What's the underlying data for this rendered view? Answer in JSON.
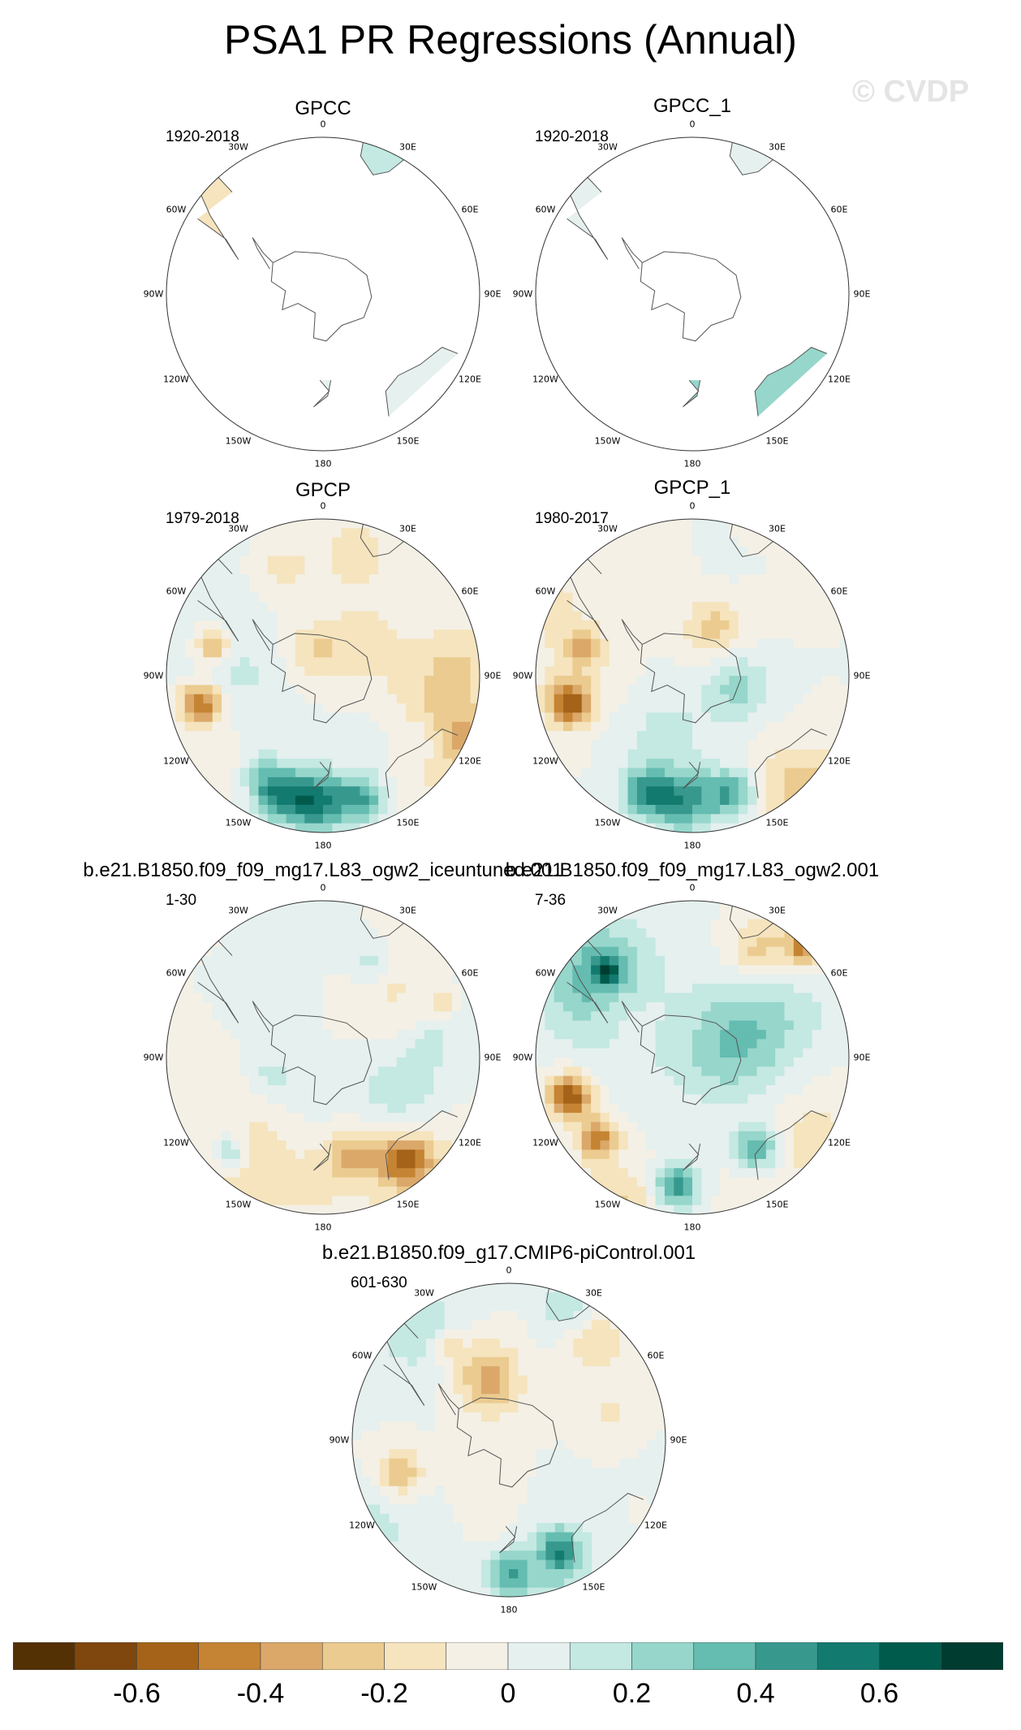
{
  "title": "PSA1 PR Regressions (Annual)",
  "watermark": "© CVDP",
  "lon_labels": [
    "0",
    "30E",
    "60E",
    "90E",
    "120E",
    "150E",
    "180",
    "150W",
    "120W",
    "90W",
    "60W",
    "30W"
  ],
  "panels": [
    {
      "title": "GPCC",
      "range": "1920-2018",
      "field": "land-only"
    },
    {
      "title": "GPCC_1",
      "range": "1920-2018",
      "field": "land-only"
    },
    {
      "title": "GPCP",
      "range": "1979-2018",
      "field": "full"
    },
    {
      "title": "GPCP_1",
      "range": "1980-2017",
      "field": "full"
    },
    {
      "title": "b.e21.B1850.f09_f09_mg17.L83_ogw2_iceuntuned.001",
      "range": "1-30",
      "field": "full"
    },
    {
      "title": "b.e21.B1850.f09_f09_mg17.L83_ogw2.001",
      "range": "7-36",
      "field": "full"
    },
    {
      "title": "b.e21.B1850.f09_g17.CMIP6-piControl.001",
      "range": "601-630",
      "field": "full"
    }
  ],
  "colorbar": {
    "colors": [
      "#543005",
      "#7f470e",
      "#a46318",
      "#c58433",
      "#dba86a",
      "#ebcb90",
      "#f5e4bd",
      "#f4f0e6",
      "#e5f0ef",
      "#c4e8e2",
      "#96d6cb",
      "#65bcb0",
      "#37998e",
      "#137a6f",
      "#005b4c",
      "#003c30"
    ],
    "labels": [
      "-0.6",
      "-0.4",
      "-0.2",
      "0",
      "0.2",
      "0.4",
      "0.6"
    ]
  }
}
